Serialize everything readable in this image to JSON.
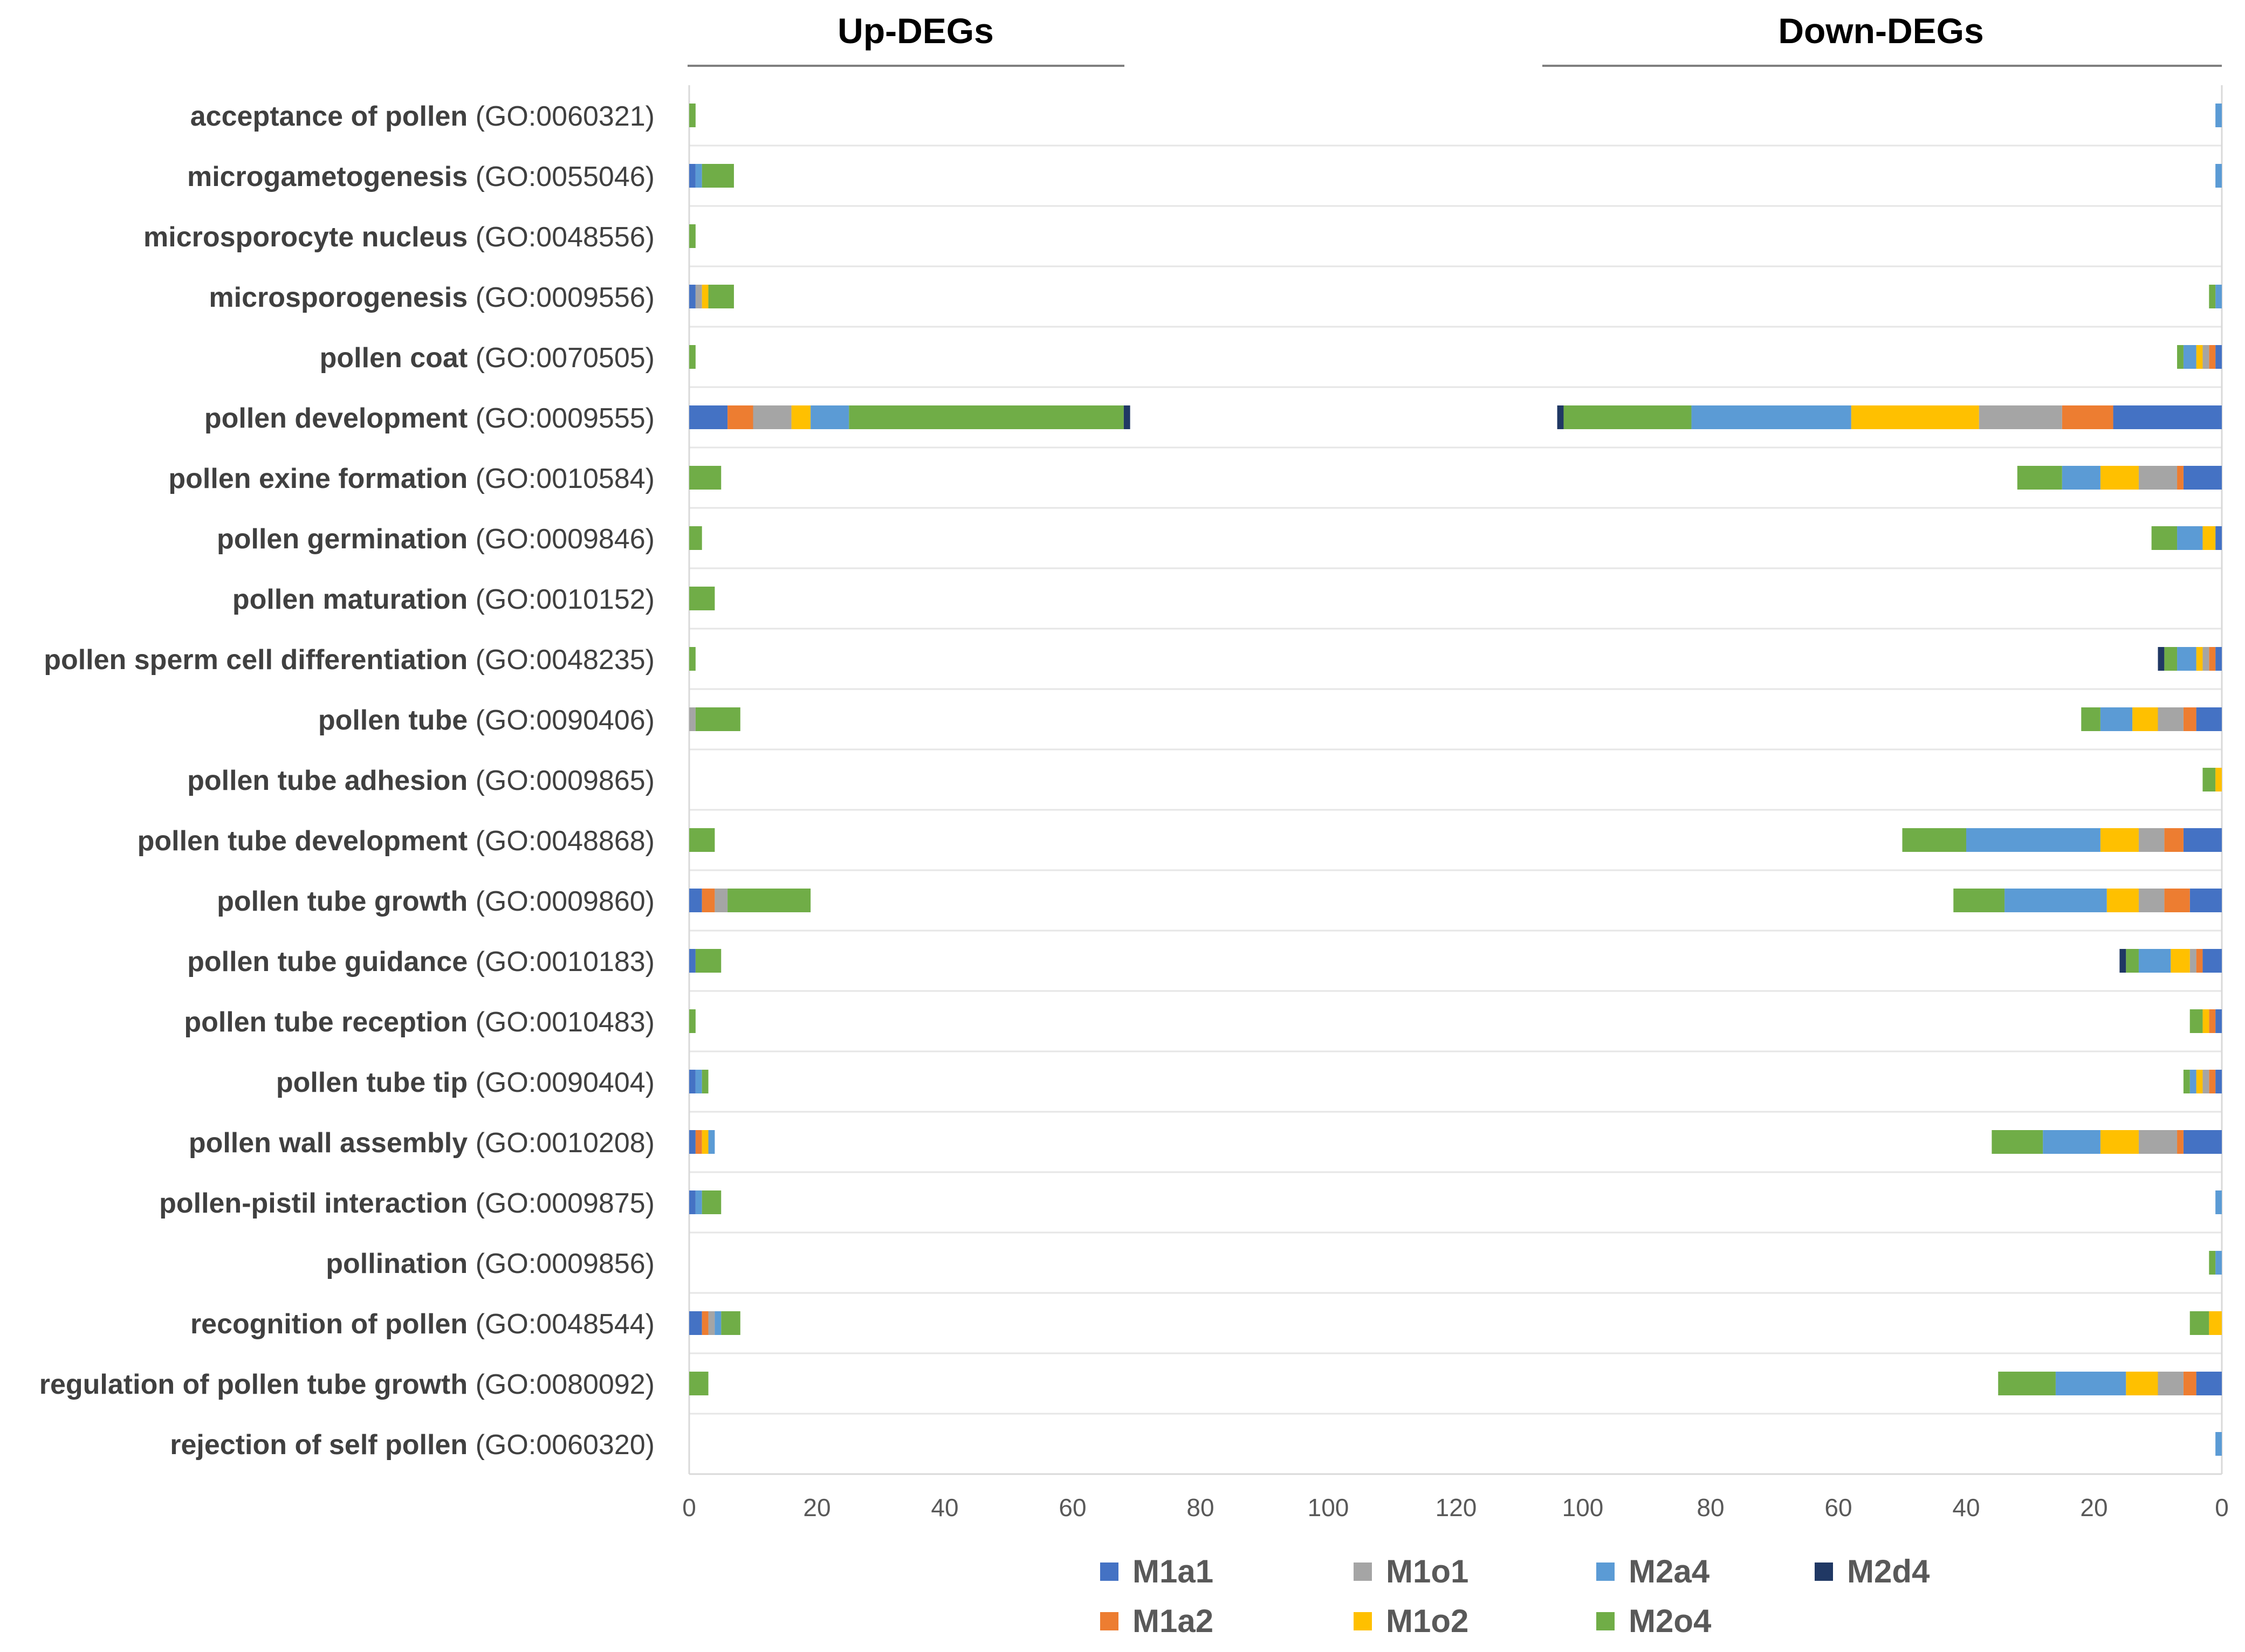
{
  "chart_data": {
    "type": "bar",
    "orientation": "horizontal-stacked",
    "panels": [
      {
        "title": "Up-DEGs",
        "direction": "left-to-right",
        "xlim": [
          0,
          140
        ],
        "ticks": [
          "0",
          "20",
          "40",
          "60",
          "80",
          "100",
          "120"
        ]
      },
      {
        "title": "Down-DEGs",
        "direction": "right-to-left",
        "xlim": [
          0,
          105
        ],
        "ticks": [
          "100",
          "80",
          "60",
          "40",
          "20",
          "0"
        ]
      }
    ],
    "categories": [
      {
        "name": "acceptance of pollen",
        "id": "(GO:0060321)"
      },
      {
        "name": "microgametogenesis",
        "id": "(GO:0055046)"
      },
      {
        "name": "microsporocyte nucleus",
        "id": "(GO:0048556)"
      },
      {
        "name": "microsporogenesis",
        "id": "(GO:0009556)"
      },
      {
        "name": "pollen coat",
        "id": "(GO:0070505)"
      },
      {
        "name": "pollen development",
        "id": "(GO:0009555)"
      },
      {
        "name": "pollen exine formation",
        "id": "(GO:0010584)"
      },
      {
        "name": "pollen germination",
        "id": "(GO:0009846)"
      },
      {
        "name": "pollen maturation",
        "id": "(GO:0010152)"
      },
      {
        "name": "pollen sperm cell differentiation",
        "id": "(GO:0048235)"
      },
      {
        "name": "pollen tube",
        "id": "(GO:0090406)"
      },
      {
        "name": "pollen tube adhesion",
        "id": "(GO:0009865)"
      },
      {
        "name": "pollen tube development",
        "id": "(GO:0048868)"
      },
      {
        "name": "pollen tube growth",
        "id": "(GO:0009860)"
      },
      {
        "name": "pollen tube guidance",
        "id": "(GO:0010183)"
      },
      {
        "name": "pollen tube reception",
        "id": "(GO:0010483)"
      },
      {
        "name": "pollen tube tip",
        "id": "(GO:0090404)"
      },
      {
        "name": "pollen wall assembly",
        "id": "(GO:0010208)"
      },
      {
        "name": "pollen-pistil interaction",
        "id": "(GO:0009875)"
      },
      {
        "name": "pollination",
        "id": "(GO:0009856)"
      },
      {
        "name": "recognition of pollen",
        "id": "(GO:0048544)"
      },
      {
        "name": "regulation of pollen tube growth",
        "id": "(GO:0080092)"
      },
      {
        "name": "rejection of self pollen",
        "id": "(GO:0060320)"
      }
    ],
    "series": [
      {
        "name": "M1a1",
        "color": "#4472C4",
        "up": [
          0,
          1,
          0,
          1,
          0,
          6,
          0,
          0,
          0,
          0,
          0,
          0,
          0,
          2,
          1,
          0,
          1,
          1,
          1,
          0,
          2,
          0,
          0
        ],
        "down": [
          0,
          0,
          0,
          0,
          1,
          17,
          6,
          1,
          0,
          1,
          4,
          0,
          6,
          5,
          3,
          1,
          1,
          6,
          0,
          0,
          0,
          4,
          0
        ]
      },
      {
        "name": "M1a2",
        "color": "#ED7D31",
        "up": [
          0,
          0,
          0,
          0,
          0,
          4,
          0,
          0,
          0,
          0,
          0,
          0,
          0,
          2,
          0,
          0,
          0,
          1,
          0,
          0,
          1,
          0,
          0
        ],
        "down": [
          0,
          0,
          0,
          0,
          1,
          8,
          1,
          0,
          0,
          1,
          2,
          0,
          3,
          4,
          1,
          1,
          1,
          1,
          0,
          0,
          0,
          2,
          0
        ]
      },
      {
        "name": "M1o1",
        "color": "#A5A5A5",
        "up": [
          0,
          0,
          0,
          1,
          0,
          6,
          0,
          0,
          0,
          0,
          1,
          0,
          0,
          2,
          0,
          0,
          0,
          0,
          0,
          0,
          1,
          0,
          0
        ],
        "down": [
          0,
          0,
          0,
          0,
          1,
          13,
          6,
          0,
          0,
          1,
          4,
          0,
          4,
          4,
          1,
          0,
          1,
          6,
          0,
          0,
          0,
          4,
          0
        ]
      },
      {
        "name": "M1o2",
        "color": "#FFC000",
        "up": [
          0,
          0,
          0,
          1,
          0,
          3,
          0,
          0,
          0,
          0,
          0,
          0,
          0,
          0,
          0,
          0,
          0,
          1,
          0,
          0,
          0,
          0,
          0
        ],
        "down": [
          0,
          0,
          0,
          0,
          1,
          20,
          6,
          2,
          0,
          1,
          4,
          1,
          6,
          5,
          3,
          1,
          1,
          6,
          0,
          0,
          2,
          5,
          0
        ]
      },
      {
        "name": "M2a4",
        "color": "#5B9BD5",
        "up": [
          0,
          1,
          0,
          0,
          0,
          6,
          0,
          0,
          0,
          0,
          0,
          0,
          0,
          0,
          0,
          0,
          1,
          1,
          1,
          0,
          1,
          0,
          0
        ],
        "down": [
          1,
          1,
          0,
          1,
          2,
          25,
          6,
          4,
          0,
          3,
          5,
          0,
          21,
          16,
          5,
          0,
          1,
          9,
          1,
          1,
          0,
          11,
          1
        ]
      },
      {
        "name": "M2o4",
        "color": "#70AD47",
        "up": [
          1,
          5,
          1,
          4,
          1,
          43,
          5,
          2,
          4,
          1,
          7,
          0,
          4,
          13,
          4,
          1,
          1,
          0,
          3,
          0,
          3,
          3,
          0
        ],
        "down": [
          0,
          0,
          0,
          1,
          1,
          20,
          7,
          4,
          0,
          2,
          3,
          2,
          10,
          8,
          2,
          2,
          1,
          8,
          0,
          1,
          3,
          9,
          0
        ]
      },
      {
        "name": "M2d4",
        "color": "#203864",
        "up": [
          0,
          0,
          0,
          0,
          0,
          1,
          0,
          0,
          0,
          0,
          0,
          0,
          0,
          0,
          0,
          0,
          0,
          0,
          0,
          0,
          0,
          0,
          0
        ],
        "down": [
          0,
          0,
          0,
          0,
          0,
          1,
          0,
          0,
          0,
          1,
          0,
          0,
          0,
          0,
          1,
          0,
          0,
          0,
          0,
          0,
          0,
          0,
          0
        ]
      }
    ],
    "legend": [
      "M1a1",
      "M1o1",
      "M2a4",
      "M2d4",
      "M1a2",
      "M1o2",
      "M2o4"
    ]
  }
}
